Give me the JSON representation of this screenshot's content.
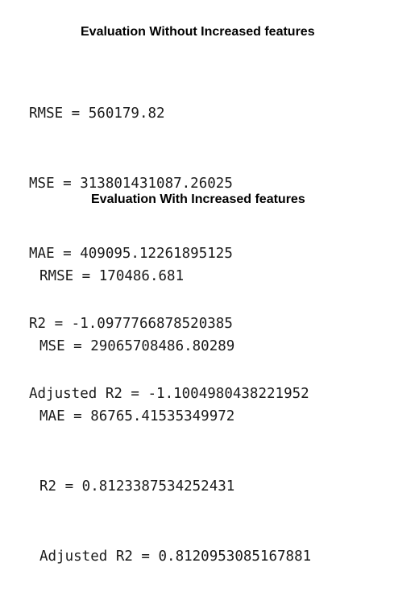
{
  "section_without": {
    "title": "Evaluation Without Increased features",
    "lines": [
      "RMSE = 560179.82",
      "MSE = 313801431087.26025",
      "MAE = 409095.12261895125",
      "R2 = -1.0977766878520385",
      "Adjusted R2 = -1.1004980438221952"
    ]
  },
  "section_with": {
    "title": "Evaluation With Increased features",
    "lines": [
      "RMSE = 170486.681",
      "MSE = 29065708486.80289",
      "MAE = 86765.41535349972",
      "R2 = 0.8123387534252431",
      "Adjusted R2 = 0.8120953085167881"
    ]
  }
}
